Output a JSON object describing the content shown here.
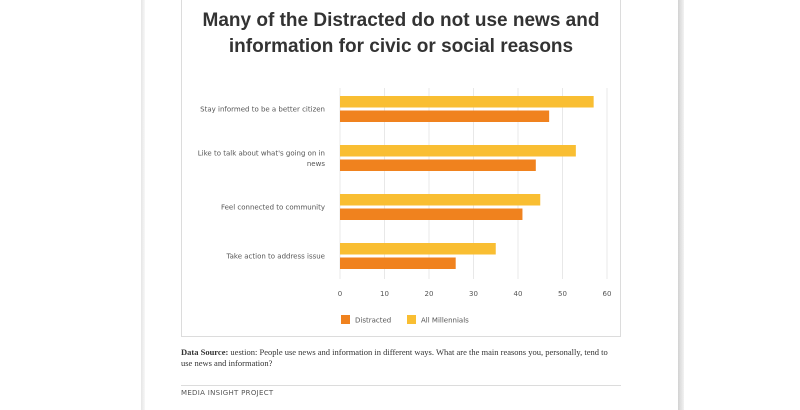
{
  "chart_data": {
    "type": "bar",
    "orientation": "horizontal",
    "title": "Many of the Distracted do not use news and information for civic or social reasons",
    "categories": [
      [
        "Stay informed to be a better citizen"
      ],
      [
        "Like to talk about what's going on in",
        "news"
      ],
      [
        "Feel connected to community"
      ],
      [
        "Take action to address issue"
      ]
    ],
    "series": [
      {
        "name": "All Millennials",
        "color": "#F9BE32",
        "values": [
          57,
          53,
          45,
          35
        ]
      },
      {
        "name": "Distracted",
        "color": "#F0821E",
        "values": [
          47,
          44,
          41,
          26
        ]
      }
    ],
    "legend_order": [
      "Distracted",
      "All Millennials"
    ],
    "xlim": [
      0,
      60
    ],
    "xticks": [
      0,
      10,
      20,
      30,
      40,
      50,
      60
    ],
    "grid": true,
    "legend_position": "bottom-left"
  },
  "source": {
    "label": "Data Source:",
    "text": "uestion: People use news and information in different ways. What are the main reasons you, personally, tend to use news and information?"
  },
  "footer": {
    "text": "MEDIA INSIGHT PROJECT"
  }
}
